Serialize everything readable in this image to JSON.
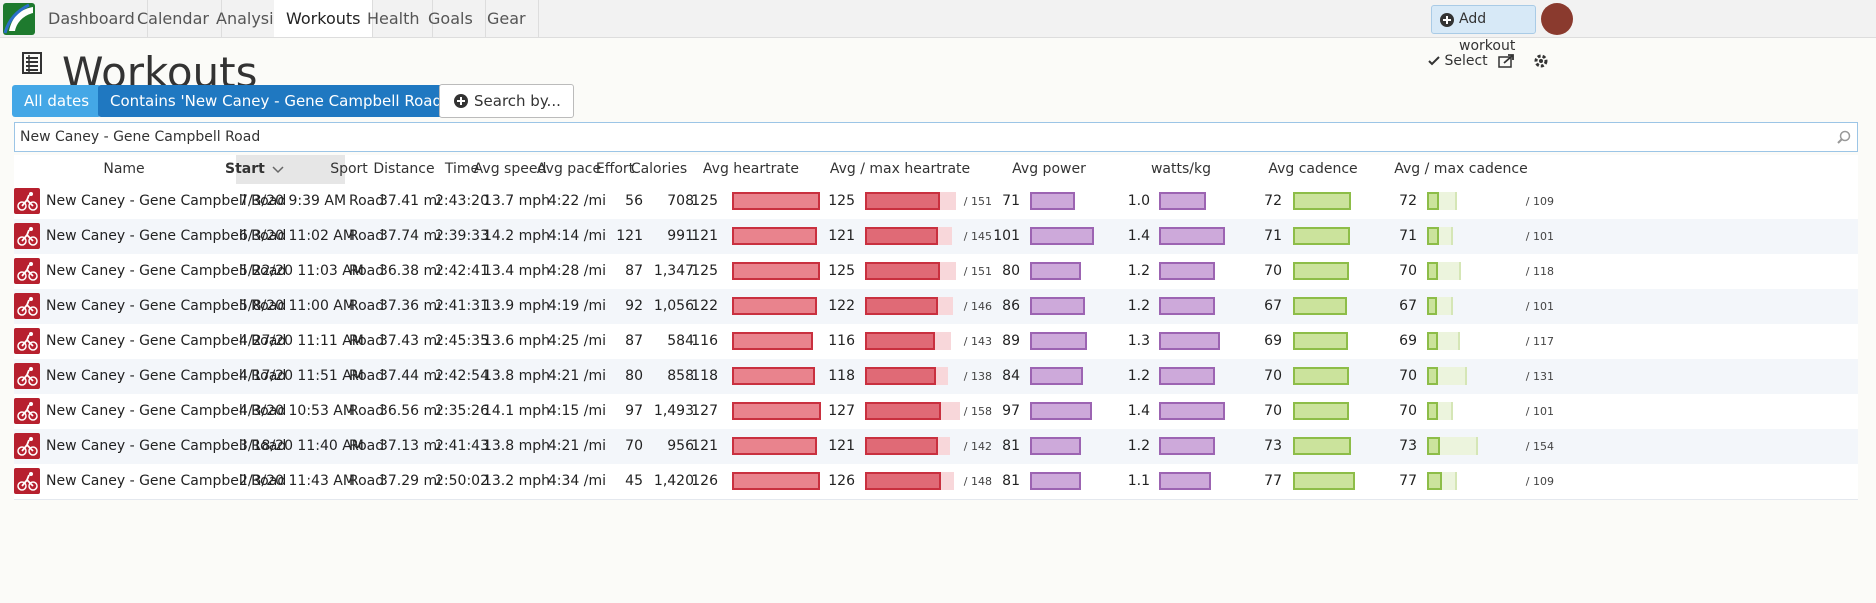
{
  "nav": {
    "items": [
      "Dashboard",
      "Calendar",
      "Analysis",
      "Workouts",
      "Health",
      "Goals",
      "Gear"
    ],
    "active": 3,
    "add_button": "Add workout"
  },
  "header": {
    "title": "Workouts",
    "select": "Select"
  },
  "filters": {
    "dates": "All dates",
    "contains": "Contains 'New Caney - Gene Campbell Road'",
    "search_by": "Search by..."
  },
  "search": {
    "value": "New Caney - Gene Campbell Road"
  },
  "table": {
    "columns": [
      "Name",
      "Start",
      "Sport",
      "Distance",
      "Time",
      "Avg speed",
      "Avg pace",
      "Effort",
      "Calories",
      "Avg heartrate",
      "Avg / max heartrate",
      "Avg power",
      "watts/kg",
      "Avg cadence",
      "Avg / max cadence"
    ],
    "sorted_column": 1,
    "rows": [
      {
        "name": "New Caney - Gene Campbell Road",
        "start": "7/3/20 9:39 AM",
        "sport": "Road",
        "distance": "37.41 mi",
        "time": "2:43:20",
        "speed": "13.7 mph",
        "pace": "4:22 /mi",
        "effort": "56",
        "calories": "708",
        "hr": 125,
        "hr_max": {
          "value": 151,
          "label": "/ 151"
        },
        "power": 71,
        "wkg": {
          "value": 1,
          "label": "1.0"
        },
        "cadence": 72,
        "cadence_max": {
          "value": 109,
          "label": "/ 109"
        }
      },
      {
        "name": "New Caney - Gene Campbell Road",
        "start": "6/3/20 11:02 AM",
        "sport": "Road",
        "distance": "37.74 mi",
        "time": "2:39:33",
        "speed": "14.2 mph",
        "pace": "4:14 /mi",
        "effort": "121",
        "calories": "991",
        "hr": 121,
        "hr_max": {
          "value": 145,
          "label": "/ 145"
        },
        "power": 101,
        "wkg": 1.4,
        "cadence": 71,
        "cadence_max": {
          "value": 101,
          "label": "/ 101"
        }
      },
      {
        "name": "New Caney - Gene Campbell Road",
        "start": "5/22/20 11:03 AM",
        "sport": "Road",
        "distance": "36.38 mi",
        "time": "2:42:41",
        "speed": "13.4 mph",
        "pace": "4:28 /mi",
        "effort": "87",
        "calories": "1,347",
        "hr": 125,
        "hr_max": {
          "value": 151,
          "label": "/ 151"
        },
        "power": 80,
        "wkg": 1.2,
        "cadence": 70,
        "cadence_max": {
          "value": 118,
          "label": "/ 118"
        }
      },
      {
        "name": "New Caney - Gene Campbell Road",
        "start": "5/8/20 11:00 AM",
        "sport": "Road",
        "distance": "37.36 mi",
        "time": "2:41:31",
        "speed": "13.9 mph",
        "pace": "4:19 /mi",
        "effort": "92",
        "calories": "1,056",
        "hr": 122,
        "hr_max": {
          "value": 146,
          "label": "/ 146"
        },
        "power": 86,
        "wkg": 1.2,
        "cadence": 67,
        "cadence_max": {
          "value": 101,
          "label": "/ 101"
        }
      },
      {
        "name": "New Caney - Gene Campbell Road",
        "start": "4/27/20 11:11 AM",
        "sport": "Road",
        "distance": "37.43 mi",
        "time": "2:45:35",
        "speed": "13.6 mph",
        "pace": "4:25 /mi",
        "effort": "87",
        "calories": "584",
        "hr": 116,
        "hr_max": {
          "value": 143,
          "label": "/ 143"
        },
        "power": 89,
        "wkg": 1.3,
        "cadence": 69,
        "cadence_max": {
          "value": 117,
          "label": "/ 117"
        }
      },
      {
        "name": "New Caney - Gene Campbell Road",
        "start": "4/17/20 11:51 AM",
        "sport": "Road",
        "distance": "37.44 mi",
        "time": "2:42:54",
        "speed": "13.8 mph",
        "pace": "4:21 /mi",
        "effort": "80",
        "calories": "858",
        "hr": 118,
        "hr_max": {
          "value": 138,
          "label": "/ 138"
        },
        "power": 84,
        "wkg": 1.2,
        "cadence": 70,
        "cadence_max": {
          "value": 131,
          "label": "/ 131"
        }
      },
      {
        "name": "New Caney - Gene Campbell Road",
        "start": "4/3/20 10:53 AM",
        "sport": "Road",
        "distance": "36.56 mi",
        "time": "2:35:26",
        "speed": "14.1 mph",
        "pace": "4:15 /mi",
        "effort": "97",
        "calories": "1,493",
        "hr": 127,
        "hr_max": {
          "value": 158,
          "label": "/ 158"
        },
        "power": 97,
        "wkg": 1.4,
        "cadence": 70,
        "cadence_max": {
          "value": 101,
          "label": "/ 101"
        }
      },
      {
        "name": "New Caney - Gene Campbell Road",
        "start": "3/18/20 11:40 AM",
        "sport": "Road",
        "distance": "37.13 mi",
        "time": "2:41:43",
        "speed": "13.8 mph",
        "pace": "4:21 /mi",
        "effort": "70",
        "calories": "956",
        "hr": 121,
        "hr_max": {
          "value": 142,
          "label": "/ 142"
        },
        "power": 81,
        "wkg": 1.2,
        "cadence": 73,
        "cadence_max": {
          "value": 154,
          "label": "/ 154"
        }
      },
      {
        "name": "New Caney - Gene Campbell Road",
        "start": "2/3/20 11:43 AM",
        "sport": "Road",
        "distance": "37.29 mi",
        "time": "2:50:02",
        "speed": "13.2 mph",
        "pace": "4:34 /mi",
        "effort": "45",
        "calories": "1,420",
        "hr": 126,
        "hr_max": {
          "value": 148,
          "label": "/ 148"
        },
        "power": 81,
        "wkg": 1.1,
        "cadence": 77,
        "cadence_max": {
          "value": 109,
          "label": "/ 109"
        }
      }
    ]
  }
}
